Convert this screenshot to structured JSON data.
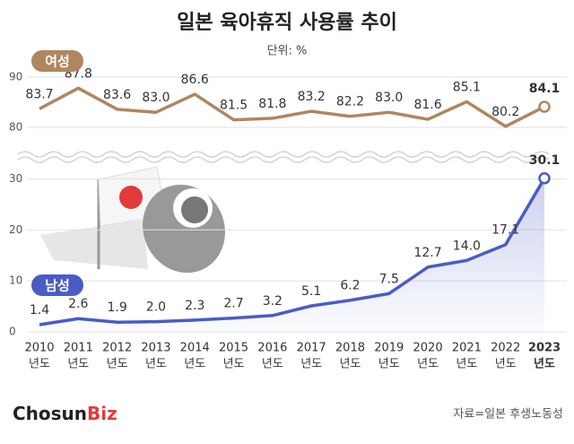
{
  "title": "일본 육아휴직 사용률 추이",
  "subtitle": "단위: %",
  "source": "자료=일본 후생노동성",
  "logo": {
    "main": "Chosun",
    "accent": "Biz"
  },
  "category_unit": "년도",
  "chart_data": [
    {
      "type": "line",
      "categories": [
        "2010",
        "2011",
        "2012",
        "2013",
        "2014",
        "2015",
        "2016",
        "2017",
        "2018",
        "2019",
        "2020",
        "2021",
        "2022",
        "2023"
      ],
      "ylim": [
        79,
        91
      ],
      "yticks": [
        80,
        90
      ],
      "grid": true,
      "series": [
        {
          "name": "여성",
          "color": "#b08660",
          "values": [
            83.7,
            87.8,
            83.6,
            83.0,
            86.6,
            81.5,
            81.8,
            83.2,
            82.2,
            83.0,
            81.6,
            85.1,
            80.2,
            84.1
          ],
          "value_labels": [
            "83.7",
            "87.8",
            "83.6",
            "83.0",
            "86.6",
            "81.5",
            "81.8",
            "83.2",
            "82.2",
            "83.0",
            "81.6",
            "85.1",
            "80.2",
            "84.1"
          ]
        }
      ]
    },
    {
      "type": "line",
      "categories": [
        "2010",
        "2011",
        "2012",
        "2013",
        "2014",
        "2015",
        "2016",
        "2017",
        "2018",
        "2019",
        "2020",
        "2021",
        "2022",
        "2023"
      ],
      "ylim": [
        0,
        32
      ],
      "yticks": [
        0,
        10,
        20,
        30
      ],
      "grid": true,
      "series": [
        {
          "name": "남성",
          "color": "#4a5cc4",
          "values": [
            1.4,
            2.6,
            1.9,
            2.0,
            2.3,
            2.7,
            3.2,
            5.1,
            6.2,
            7.5,
            12.7,
            14.0,
            17.1,
            30.1
          ],
          "value_labels": [
            "1.4",
            "2.6",
            "1.9",
            "2.0",
            "2.3",
            "2.7",
            "3.2",
            "5.1",
            "6.2",
            "7.5",
            "12.7",
            "14.0",
            "17.1",
            "30.1"
          ]
        }
      ]
    }
  ]
}
